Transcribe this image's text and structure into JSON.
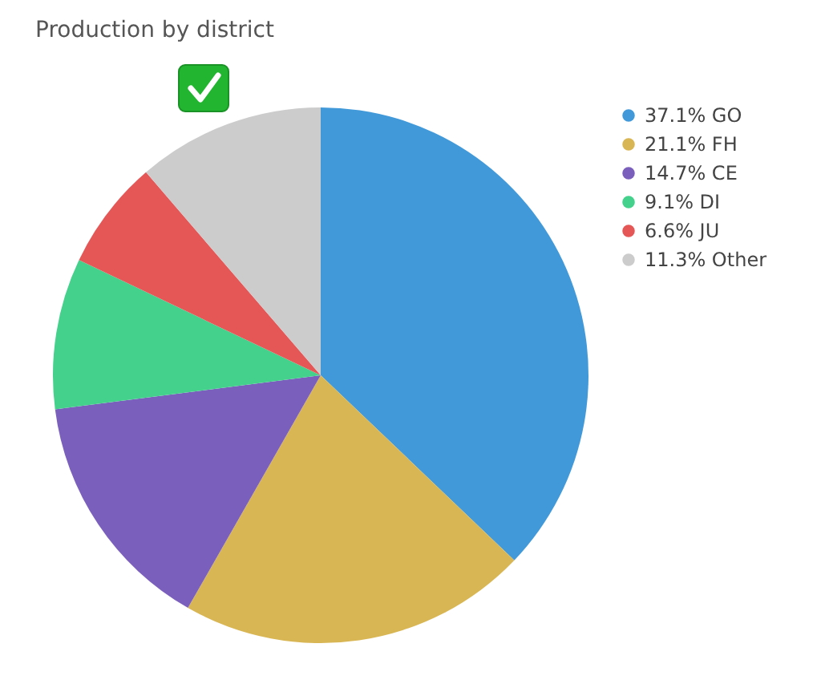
{
  "chart_data": {
    "type": "pie",
    "title": "Production by district",
    "categories": [
      "37.1% GO",
      "21.1% FH",
      "14.7% CE",
      "9.1% DI",
      "6.6% JU",
      "11.3% Other"
    ],
    "values": [
      37.1,
      21.1,
      14.7,
      9.1,
      6.6,
      11.3
    ],
    "colors": [
      "#4199d9",
      "#d9b654",
      "#7b5fbd",
      "#44d18c",
      "#e55757",
      "#cccccc"
    ],
    "legend": "right"
  }
}
